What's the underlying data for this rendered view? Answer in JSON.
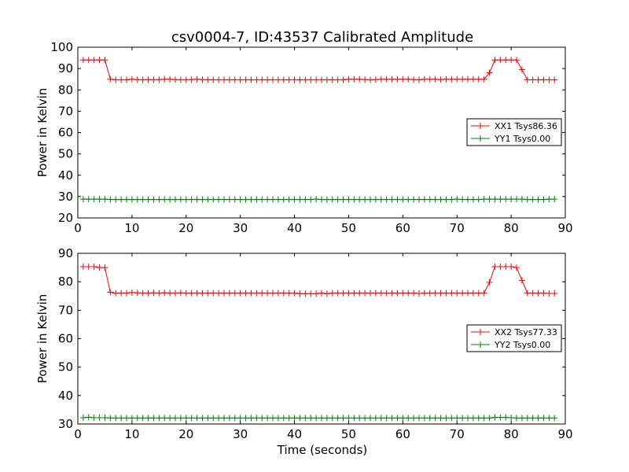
{
  "chart_data": [
    {
      "type": "line",
      "title": "csv0004-7, ID:43537 Calibrated Amplitude",
      "xlabel": "",
      "ylabel": "Power in Kelvin",
      "xlim": [
        0,
        90
      ],
      "ylim": [
        20,
        100
      ],
      "xticks": [
        0,
        10,
        20,
        30,
        40,
        50,
        60,
        70,
        80,
        90
      ],
      "yticks": [
        20,
        30,
        40,
        50,
        60,
        70,
        80,
        90,
        100
      ],
      "grid": false,
      "legend_position": "right",
      "x": [
        1,
        2,
        3,
        4,
        5,
        6,
        7,
        8,
        9,
        10,
        11,
        12,
        13,
        14,
        15,
        16,
        17,
        18,
        19,
        20,
        21,
        22,
        23,
        24,
        25,
        26,
        27,
        28,
        29,
        30,
        31,
        32,
        33,
        34,
        35,
        36,
        37,
        38,
        39,
        40,
        41,
        42,
        43,
        44,
        45,
        46,
        47,
        48,
        49,
        50,
        51,
        52,
        53,
        54,
        55,
        56,
        57,
        58,
        59,
        60,
        61,
        62,
        63,
        64,
        65,
        66,
        67,
        68,
        69,
        70,
        71,
        72,
        73,
        74,
        75,
        76,
        77,
        78,
        79,
        80,
        81,
        82,
        83,
        84,
        85,
        86,
        87,
        88
      ],
      "series": [
        {
          "name": "XX1 Tsys86.36",
          "color": "#ff0000",
          "values": [
            94,
            94,
            94,
            94,
            94,
            85,
            84.7,
            84.7,
            84.7,
            85,
            84.8,
            84.7,
            84.8,
            84.7,
            84.8,
            85,
            85,
            84.8,
            84.7,
            84.7,
            84.8,
            85,
            84.8,
            84.7,
            84.7,
            84.7,
            84.7,
            84.7,
            84.7,
            84.7,
            84.7,
            84.7,
            84.7,
            84.7,
            84.7,
            84.7,
            84.7,
            84.7,
            84.7,
            84.7,
            84.7,
            84.7,
            84.7,
            84.7,
            84.7,
            84.7,
            84.7,
            84.7,
            84.7,
            85,
            85,
            85,
            84.8,
            84.7,
            84.8,
            85,
            85,
            85,
            85,
            85,
            85,
            84.8,
            84.7,
            85,
            85,
            85,
            84.8,
            85,
            85,
            85,
            85,
            85,
            85,
            85,
            85,
            88,
            94,
            94,
            94,
            94,
            94,
            89.5,
            84.7,
            84.7,
            84.7,
            84.7,
            84.7,
            84.7
          ]
        },
        {
          "name": "YY1 Tsys0.00",
          "color": "#008000",
          "values": [
            28.8,
            28.8,
            28.8,
            28.8,
            28.8,
            28.6,
            28.6,
            28.6,
            28.6,
            28.6,
            28.6,
            28.6,
            28.6,
            28.6,
            28.6,
            28.6,
            28.6,
            28.6,
            28.6,
            28.6,
            28.6,
            28.6,
            28.6,
            28.6,
            28.6,
            28.6,
            28.6,
            28.6,
            28.6,
            28.6,
            28.6,
            28.6,
            28.6,
            28.6,
            28.6,
            28.6,
            28.6,
            28.6,
            28.6,
            28.6,
            28.6,
            28.6,
            28.6,
            28.8,
            28.6,
            28.6,
            28.6,
            28.6,
            28.6,
            28.6,
            28.6,
            28.6,
            28.6,
            28.6,
            28.6,
            28.6,
            28.6,
            28.6,
            28.6,
            28.6,
            28.6,
            28.6,
            28.6,
            28.6,
            28.6,
            28.6,
            28.6,
            28.6,
            28.6,
            28.8,
            28.6,
            28.6,
            28.6,
            28.6,
            28.8,
            28.8,
            28.8,
            28.8,
            28.8,
            28.8,
            28.8,
            28.8,
            28.6,
            28.6,
            28.6,
            28.6,
            28.8,
            28.8
          ]
        }
      ]
    },
    {
      "type": "line",
      "title": "",
      "xlabel": "Time (seconds)",
      "ylabel": "Power in Kelvin",
      "xlim": [
        0,
        90
      ],
      "ylim": [
        30,
        90
      ],
      "xticks": [
        0,
        10,
        20,
        30,
        40,
        50,
        60,
        70,
        80,
        90
      ],
      "yticks": [
        30,
        40,
        50,
        60,
        70,
        80,
        90
      ],
      "grid": false,
      "legend_position": "right",
      "x": [
        1,
        2,
        3,
        4,
        5,
        6,
        7,
        8,
        9,
        10,
        11,
        12,
        13,
        14,
        15,
        16,
        17,
        18,
        19,
        20,
        21,
        22,
        23,
        24,
        25,
        26,
        27,
        28,
        29,
        30,
        31,
        32,
        33,
        34,
        35,
        36,
        37,
        38,
        39,
        40,
        41,
        42,
        43,
        44,
        45,
        46,
        47,
        48,
        49,
        50,
        51,
        52,
        53,
        54,
        55,
        56,
        57,
        58,
        59,
        60,
        61,
        62,
        63,
        64,
        65,
        66,
        67,
        68,
        69,
        70,
        71,
        72,
        73,
        74,
        75,
        76,
        77,
        78,
        79,
        80,
        81,
        82,
        83,
        84,
        85,
        86,
        87,
        88
      ],
      "series": [
        {
          "name": "XX2 Tsys77.33",
          "color": "#ff0000",
          "values": [
            85.3,
            85.3,
            85.3,
            85,
            85,
            76.3,
            76,
            76,
            76,
            76.2,
            76.1,
            76,
            76,
            76.1,
            76,
            76.1,
            76,
            76,
            76.1,
            76,
            76,
            76,
            76,
            76,
            76,
            76,
            76,
            76,
            76,
            76,
            76,
            76,
            76,
            76,
            76,
            76,
            76,
            76,
            76,
            76,
            75.8,
            75.8,
            75.8,
            75.8,
            76,
            75.8,
            76,
            76,
            76,
            76,
            76,
            76,
            76,
            76,
            76,
            76,
            76,
            76,
            76,
            76,
            76,
            76,
            75.9,
            76,
            76,
            76,
            76,
            76,
            76,
            76,
            76,
            76,
            76,
            76,
            76,
            79.8,
            85.3,
            85.3,
            85.3,
            85.3,
            85,
            80.5,
            76,
            76,
            76,
            76,
            75.9,
            75.9
          ]
        },
        {
          "name": "YY2 Tsys0.00",
          "color": "#008000",
          "values": [
            32.2,
            32.4,
            32.2,
            32.2,
            32.2,
            32.1,
            32.1,
            32.1,
            32.1,
            32.1,
            32.1,
            32.1,
            32.1,
            32.1,
            32.1,
            32.1,
            32.1,
            32.1,
            32.1,
            32.1,
            32.1,
            32.1,
            32.1,
            32.1,
            32.1,
            32.1,
            32.1,
            32.1,
            32.1,
            32.1,
            32.1,
            32.1,
            32.1,
            32.1,
            32.1,
            32.1,
            32.1,
            32.1,
            32.1,
            32.1,
            32.1,
            32.1,
            32.1,
            32.1,
            32.1,
            32.1,
            32.1,
            32.1,
            32.1,
            32.1,
            32.1,
            32.1,
            32.1,
            32.1,
            32.1,
            32.1,
            32.1,
            32.1,
            32.1,
            32.1,
            32.1,
            32.1,
            32.1,
            32.1,
            32.1,
            32.1,
            32.1,
            32.1,
            32.1,
            32.1,
            32.1,
            32.1,
            32.1,
            32.1,
            32.1,
            32.1,
            32.3,
            32.3,
            32.3,
            32.2,
            32.1,
            32.1,
            32.1,
            32.1,
            32.1,
            32.1,
            32.1,
            32.1
          ]
        }
      ]
    }
  ]
}
